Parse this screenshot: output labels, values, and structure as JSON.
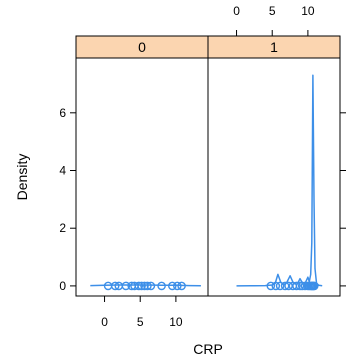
{
  "chart_data": {
    "type": "density",
    "title": "",
    "xlabel": "CRP",
    "ylabel": "Density",
    "xlim": [
      -4,
      14.5
    ],
    "ylim": [
      -0.35,
      7.9
    ],
    "x_ticks": [
      0,
      5,
      10
    ],
    "y_ticks": [
      0,
      2,
      4,
      6
    ],
    "x_tick_labels": [
      "0",
      "5",
      "10"
    ],
    "y_tick_labels": [
      "0",
      "2",
      "4",
      "6"
    ],
    "grid": false,
    "legend": "none",
    "colors": {
      "series": "#3d8fe8",
      "strip": "#fbd5b0",
      "frame": "#000000"
    },
    "panels": [
      {
        "strip_label": "0",
        "density": {
          "x": [
            -2,
            0,
            2,
            4,
            6,
            8,
            10,
            12,
            13.5
          ],
          "y": [
            0.01,
            0.02,
            0.03,
            0.03,
            0.03,
            0.02,
            0.02,
            0.01,
            0.005
          ]
        },
        "points": [
          0.5,
          1.5,
          2.0,
          3.0,
          3.8,
          4.2,
          4.8,
          5.2,
          5.6,
          6.0,
          6.5,
          8.0,
          9.5,
          10.2,
          10.8
        ]
      },
      {
        "strip_label": "1",
        "density": {
          "x": [
            0,
            2,
            4,
            5,
            5.4,
            5.8,
            6.2,
            6.6,
            7,
            7.5,
            8,
            8.5,
            8.9,
            9.2,
            9.6,
            10,
            10.2,
            10.4,
            10.55,
            10.7,
            10.85,
            11,
            11.2,
            11.5,
            12
          ],
          "y": [
            0,
            0.005,
            0.01,
            0.03,
            0.08,
            0.4,
            0.12,
            0.05,
            0.1,
            0.35,
            0.08,
            0.06,
            0.25,
            0.12,
            0.08,
            0.3,
            0.15,
            0.4,
            1.5,
            7.3,
            3.0,
            0.6,
            0.1,
            0.02,
            0.005
          ]
        },
        "points": [
          4.8,
          5.5,
          6.1,
          6.8,
          7.3,
          7.9,
          8.4,
          8.9,
          9.2,
          9.6,
          10.0,
          10.2,
          10.4,
          10.5,
          10.6,
          10.7,
          10.8,
          10.9
        ]
      }
    ]
  }
}
